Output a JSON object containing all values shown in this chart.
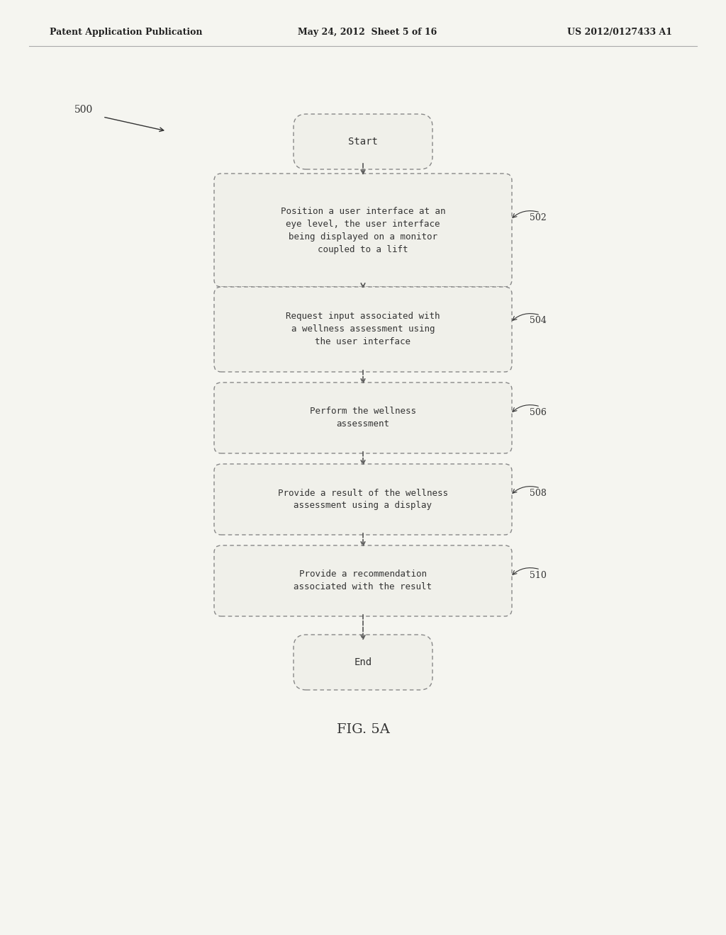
{
  "header_left": "Patent Application Publication",
  "header_mid": "May 24, 2012  Sheet 5 of 16",
  "header_right": "US 2012/0127433 A1",
  "fig_label": "FIG. 5A",
  "diagram_label": "500",
  "start_label": "Start",
  "end_label": "End",
  "boxes": [
    {
      "id": 502,
      "label": "Position a user interface at an\neye level, the user interface\nbeing displayed on a monitor\ncoupled to a lift"
    },
    {
      "id": 504,
      "label": "Request input associated with\na wellness assessment using\nthe user interface"
    },
    {
      "id": 506,
      "label": "Perform the wellness\nassessment"
    },
    {
      "id": 508,
      "label": "Provide a result of the wellness\nassessment using a display"
    },
    {
      "id": 510,
      "label": "Provide a recommendation\nassociated with the result"
    }
  ],
  "bg_color": "#f5f5f0",
  "box_fill": "#f0f0ea",
  "box_edge": "#888888",
  "text_color": "#333333",
  "arrow_color": "#555555",
  "header_color": "#222222"
}
